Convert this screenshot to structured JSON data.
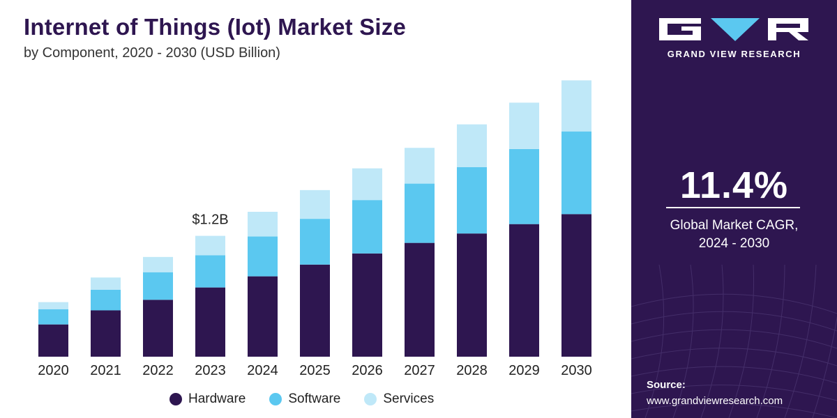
{
  "header": {
    "title": "Internet of Things (Iot) Market Size",
    "subtitle": "by Component, 2020 - 2030 (USD Billion)"
  },
  "colors": {
    "hardware": "#2e1650",
    "software": "#5bc8f0",
    "services": "#bfe8f8",
    "panel": "#2e1650"
  },
  "chart_data": {
    "type": "bar",
    "stacked": true,
    "categories": [
      "2020",
      "2021",
      "2022",
      "2023",
      "2024",
      "2025",
      "2026",
      "2027",
      "2028",
      "2029",
      "2030"
    ],
    "series": [
      {
        "name": "Hardware",
        "values": [
          0.55,
          0.79,
          0.97,
          1.18,
          1.37,
          1.57,
          1.76,
          1.94,
          2.1,
          2.26,
          2.43
        ]
      },
      {
        "name": "Software",
        "values": [
          0.26,
          0.35,
          0.47,
          0.55,
          0.68,
          0.78,
          0.91,
          1.01,
          1.13,
          1.28,
          1.41
        ]
      },
      {
        "name": "Services",
        "values": [
          0.12,
          0.21,
          0.26,
          0.33,
          0.42,
          0.49,
          0.54,
          0.61,
          0.73,
          0.79,
          0.87
        ]
      }
    ],
    "annotations": [
      {
        "category": "2023",
        "label": "$1.2B"
      }
    ],
    "ylim": [
      0,
      4.75
    ],
    "grid": false,
    "legend": "bottom-center"
  },
  "sidebar": {
    "brand": "GRAND VIEW RESEARCH",
    "cagr_value": "11.4%",
    "cagr_label_line1": "Global Market CAGR,",
    "cagr_label_line2": "2024 - 2030",
    "source_label": "Source:",
    "source_url": "www.grandviewresearch.com"
  }
}
